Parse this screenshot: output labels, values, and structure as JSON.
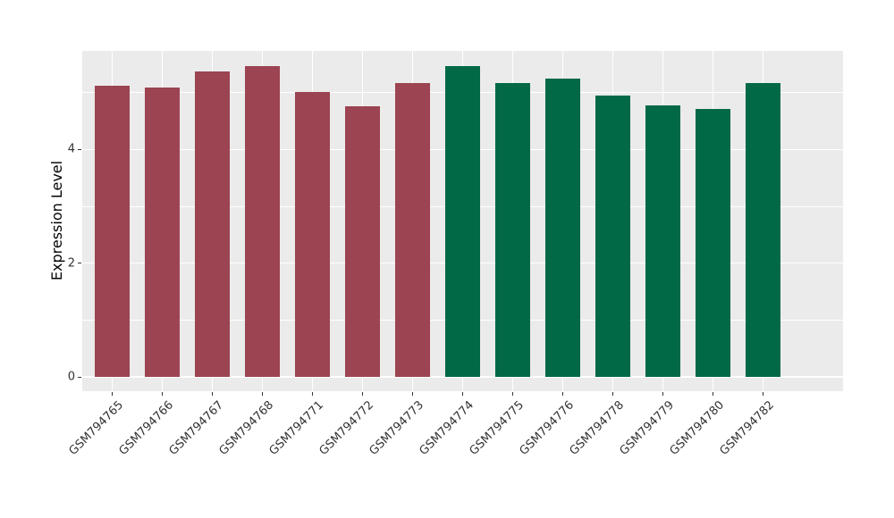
{
  "figure": {
    "background": "#ffffff",
    "panel_background": "#EBEBEB",
    "grid_color": "#ffffff",
    "tick_color": "#333333",
    "label_color": "#333333",
    "axis_title_color": "#000000"
  },
  "chart_data": {
    "type": "bar",
    "title": "",
    "xlabel": "",
    "ylabel": "Expression Level",
    "categories": [
      "GSM794765",
      "GSM794766",
      "GSM794767",
      "GSM794768",
      "GSM794771",
      "GSM794772",
      "GSM794773",
      "GSM794774",
      "GSM794775",
      "GSM794776",
      "GSM794778",
      "GSM794779",
      "GSM794780",
      "GSM794782"
    ],
    "values": [
      5.11,
      5.08,
      5.37,
      5.47,
      5.01,
      4.75,
      5.17,
      5.46,
      5.16,
      5.24,
      4.95,
      4.77,
      4.71,
      5.16
    ],
    "bar_colors": [
      "#9c4451",
      "#9c4451",
      "#9c4451",
      "#9c4451",
      "#9c4451",
      "#9c4451",
      "#9c4451",
      "#016946",
      "#016946",
      "#016946",
      "#016946",
      "#016946",
      "#016946",
      "#016946"
    ],
    "group_colors": {
      "left_group": "#9c4451",
      "right_group": "#016946"
    },
    "yticks_major": [
      0,
      2,
      4
    ],
    "yticks_minor": [
      1,
      3,
      5
    ],
    "ytick_labels": [
      "0",
      "2",
      "4"
    ],
    "ylim": [
      0,
      5.75
    ],
    "x_label_rotation_deg": 45,
    "grid": "white major+minor horizontal, white major vertical at category centers",
    "legend": "none"
  }
}
